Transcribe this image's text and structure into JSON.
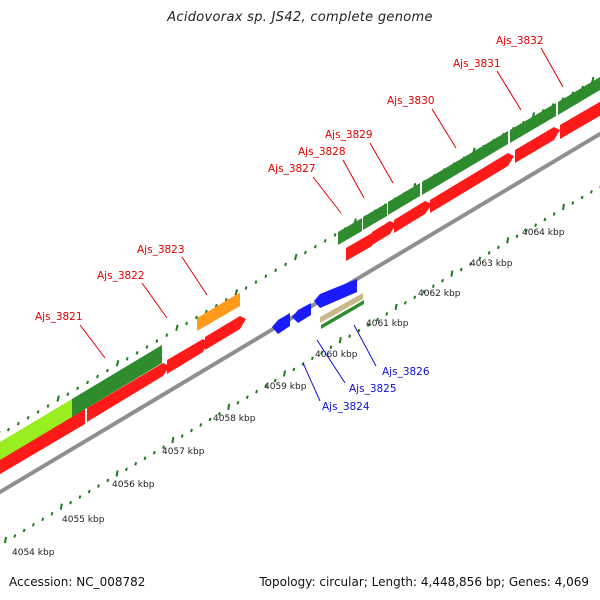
{
  "title": "Acidovorax sp. JS42, complete genome",
  "footer": {
    "accession": "Accession: NC_008782",
    "topology": "Topology: circular; Length: 4,448,856 bp; Genes: 4,069"
  },
  "colors": {
    "backbone": "#9a9a9a",
    "tick": "#1e7a1e",
    "forward_red_label": "#e00000",
    "reverse_blue_label": "#1010d0",
    "gene_red": "#ff1a1a",
    "gene_green": "#2e8b2e",
    "gene_lightgreen": "#99ee22",
    "gene_orange": "#ff9a1a",
    "gene_blue": "#1a1aff",
    "gene_tan": "#c8b98a"
  },
  "scale": {
    "unit": "kbp",
    "labels": [
      "4054 kbp",
      "4055 kbp",
      "4056 kbp",
      "4057 kbp",
      "4058 kbp",
      "4059 kbp",
      "4060 kbp",
      "4061 kbp",
      "4062 kbp",
      "4063 kbp",
      "4064 kbp"
    ]
  },
  "genes": {
    "forward": [
      "Ajs_3821",
      "Ajs_3822",
      "Ajs_3823",
      "Ajs_3827",
      "Ajs_3828",
      "Ajs_3829",
      "Ajs_3830",
      "Ajs_3831",
      "Ajs_3832"
    ],
    "reverse": [
      "Ajs_3824",
      "Ajs_3825",
      "Ajs_3826"
    ]
  }
}
